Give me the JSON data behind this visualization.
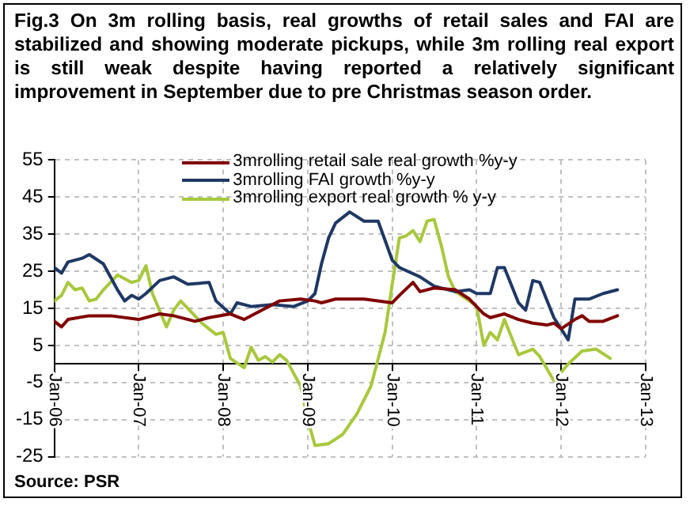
{
  "chart_data": {
    "type": "line",
    "title": "Fig.3 On 3m rolling basis, real growths of retail sales and FAI are stabilized and showing moderate pickups, while 3m rolling real export is still weak despite having reported a relatively significant improvement in September due to pre Christmas season order.",
    "annotations": [
      "Source: PSR"
    ],
    "xlim": [
      "2006-01",
      "2013-01"
    ],
    "xticks": [
      {
        "value": "2006-01",
        "label": "Jan-06"
      },
      {
        "value": "2007-01",
        "label": "Jan-07"
      },
      {
        "value": "2008-01",
        "label": "Jan-08"
      },
      {
        "value": "2009-01",
        "label": "Jan-09"
      },
      {
        "value": "2010-01",
        "label": "Jan-10"
      },
      {
        "value": "2011-01",
        "label": "Jan-11"
      },
      {
        "value": "2012-01",
        "label": "Jan-12"
      },
      {
        "value": "2013-01",
        "label": "Jan-13"
      }
    ],
    "ylim": [
      -25,
      55
    ],
    "yticks": [
      -25,
      -15,
      -5,
      5,
      15,
      25,
      35,
      45,
      55
    ],
    "grid": true,
    "legend": "top",
    "marker": "none",
    "line_style": "solid",
    "series": [
      {
        "name": "3mrolling retail sale real growth %y-y",
        "color": "#800000",
        "x": [
          "2006-01",
          "2006-02",
          "2006-03",
          "2006-06",
          "2006-09",
          "2007-01",
          "2007-04",
          "2007-06",
          "2007-09",
          "2007-11",
          "2008-02",
          "2008-04",
          "2008-07",
          "2008-09",
          "2008-12",
          "2009-02",
          "2009-03",
          "2009-05",
          "2009-09",
          "2010-01",
          "2010-02",
          "2010-04",
          "2010-05",
          "2010-07",
          "2010-10",
          "2010-12",
          "2011-02",
          "2011-03",
          "2011-05",
          "2011-07",
          "2011-09",
          "2011-11",
          "2011-12",
          "2012-01",
          "2012-03",
          "2012-04",
          "2012-05",
          "2012-07",
          "2012-09"
        ],
        "values": [
          11.5,
          10,
          12,
          13,
          13,
          12,
          13.5,
          13,
          11.5,
          12.5,
          13.5,
          12,
          15,
          17,
          17.5,
          17,
          16.5,
          17.5,
          17.5,
          16.5,
          18.5,
          22,
          19.5,
          20.5,
          20,
          17.5,
          13.5,
          12.5,
          13.5,
          12,
          11,
          10.5,
          11,
          9.5,
          12,
          13,
          11.5,
          11.5,
          13
        ]
      },
      {
        "name": "3mrolling FAI growth %y-y",
        "color": "#1f3864",
        "x": [
          "2006-01",
          "2006-02",
          "2006-03",
          "2006-05",
          "2006-06",
          "2006-08",
          "2006-10",
          "2006-11",
          "2006-12",
          "2007-01",
          "2007-02",
          "2007-04",
          "2007-06",
          "2007-08",
          "2007-11",
          "2007-12",
          "2008-02",
          "2008-03",
          "2008-05",
          "2008-08",
          "2008-11",
          "2009-01",
          "2009-02",
          "2009-03",
          "2009-04",
          "2009-05",
          "2009-07",
          "2009-09",
          "2009-11",
          "2010-01",
          "2010-02",
          "2010-05",
          "2010-07",
          "2010-10",
          "2010-12",
          "2011-01",
          "2011-03",
          "2011-04",
          "2011-05",
          "2011-07",
          "2011-08",
          "2011-09",
          "2011-10",
          "2011-12",
          "2012-02",
          "2012-03",
          "2012-05",
          "2012-07",
          "2012-09"
        ],
        "values": [
          26,
          24.5,
          27.5,
          28.5,
          29.5,
          27,
          20,
          17,
          18.5,
          17.5,
          19,
          22.5,
          23.5,
          21.5,
          22,
          17,
          13.5,
          16.5,
          15.5,
          16,
          15.5,
          17,
          19,
          27,
          34,
          38,
          41,
          38.5,
          38.5,
          28,
          26,
          23.5,
          21,
          19.5,
          20,
          19,
          19,
          26,
          26,
          16.5,
          14.5,
          22.5,
          22,
          12.5,
          6.5,
          17.5,
          17.5,
          19,
          20
        ]
      },
      {
        "name": "3mrolling export  real growth % y-y",
        "color": "#a8c83c",
        "x": [
          "2006-01",
          "2006-02",
          "2006-03",
          "2006-04",
          "2006-05",
          "2006-06",
          "2006-07",
          "2006-08",
          "2006-10",
          "2006-12",
          "2007-01",
          "2007-02",
          "2007-03",
          "2007-05",
          "2007-06",
          "2007-07",
          "2007-08",
          "2007-10",
          "2007-12",
          "2008-01",
          "2008-02",
          "2008-04",
          "2008-05",
          "2008-06",
          "2008-07",
          "2008-08",
          "2008-09",
          "2008-10",
          "2008-12",
          "2009-01",
          "2009-02",
          "2009-04",
          "2009-06",
          "2009-08",
          "2009-10",
          "2009-12",
          "2010-01",
          "2010-02",
          "2010-03",
          "2010-04",
          "2010-05",
          "2010-06",
          "2010-07",
          "2010-08",
          "2010-09",
          "2010-10",
          "2010-12",
          "2011-01",
          "2011-02",
          "2011-03",
          "2011-04",
          "2011-05",
          "2011-07",
          "2011-09",
          "2011-10",
          "2011-12",
          "2012-02",
          "2012-04",
          "2012-06",
          "2012-08"
        ],
        "values": [
          17,
          18.5,
          22,
          20,
          20.5,
          17,
          17.5,
          20,
          24,
          22,
          22.5,
          26.5,
          19,
          10,
          14.5,
          17,
          15,
          11,
          8,
          8.5,
          1.5,
          -1,
          4.5,
          1,
          2,
          0.5,
          2.5,
          1,
          -6,
          -15,
          -22,
          -21.5,
          -19,
          -13.5,
          -6,
          8.5,
          21.5,
          34,
          34.5,
          36,
          33,
          38.5,
          39,
          32,
          23.5,
          19.5,
          17,
          15.5,
          5,
          8.5,
          6.5,
          12,
          2.5,
          4,
          2,
          -4.5,
          0,
          3.5,
          4,
          1.5
        ]
      }
    ]
  }
}
